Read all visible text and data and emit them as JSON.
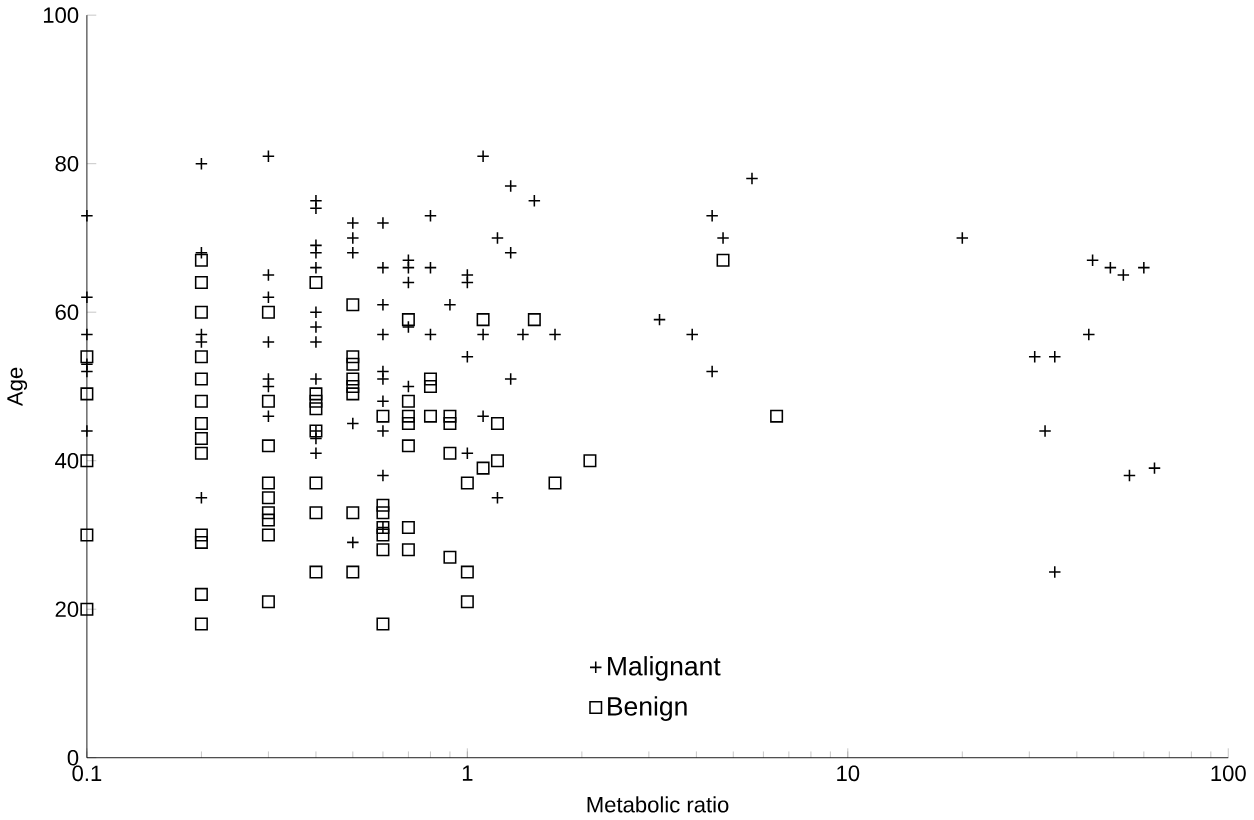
{
  "chart_data": {
    "type": "scatter",
    "xlabel": "Metabolic ratio",
    "ylabel": "Age",
    "log": "x",
    "xlim": [
      0.1,
      100
    ],
    "ylim": [
      0,
      100
    ],
    "xticks": [
      0.1,
      1,
      10,
      100
    ],
    "yticks": [
      0,
      20,
      40,
      60,
      80,
      100
    ],
    "grid": false,
    "legend": "bottom",
    "series": [
      {
        "name": "Malignant",
        "color": "#000000",
        "marker": "cross",
        "x": [
          0.1,
          0.1,
          0.1,
          0.1,
          0.1,
          0.1,
          0.2,
          0.2,
          0.2,
          0.2,
          0.2,
          0.3,
          0.3,
          0.3,
          0.3,
          0.3,
          0.3,
          0.3,
          0.4,
          0.4,
          0.4,
          0.4,
          0.4,
          0.4,
          0.4,
          0.4,
          0.4,
          0.4,
          0.4,
          0.4,
          0.5,
          0.5,
          0.5,
          0.5,
          0.5,
          0.6,
          0.6,
          0.6,
          0.6,
          0.6,
          0.6,
          0.6,
          0.6,
          0.6,
          0.6,
          0.7,
          0.7,
          0.7,
          0.7,
          0.7,
          0.8,
          0.8,
          0.8,
          0.9,
          1.0,
          1.0,
          1.0,
          1.0,
          1.1,
          1.1,
          1.1,
          1.2,
          1.2,
          1.3,
          1.3,
          1.3,
          1.4,
          1.5,
          1.7,
          3.2,
          3.9,
          4.4,
          4.4,
          4.7,
          5.6,
          20,
          31,
          33,
          35,
          35,
          43,
          44,
          49,
          53,
          55,
          60,
          64
        ],
        "values": [
          73,
          62,
          57,
          53,
          52,
          44,
          80,
          68,
          57,
          56,
          35,
          81,
          65,
          62,
          56,
          51,
          50,
          46,
          75,
          74,
          69,
          68,
          66,
          60,
          58,
          56,
          51,
          44,
          43,
          41,
          72,
          70,
          68,
          45,
          29,
          72,
          66,
          61,
          57,
          52,
          51,
          48,
          44,
          38,
          31,
          67,
          66,
          64,
          58,
          50,
          73,
          66,
          57,
          61,
          65,
          64,
          54,
          41,
          81,
          57,
          46,
          70,
          35,
          77,
          68,
          51,
          57,
          75,
          57,
          59,
          57,
          73,
          52,
          70,
          78,
          70,
          54,
          44,
          54,
          25,
          57,
          67,
          66,
          65,
          38,
          66,
          39
        ]
      },
      {
        "name": "Benign",
        "color": "#000000",
        "marker": "square",
        "x": [
          0.1,
          0.1,
          0.1,
          0.1,
          0.1,
          0.2,
          0.2,
          0.2,
          0.2,
          0.2,
          0.2,
          0.2,
          0.2,
          0.2,
          0.2,
          0.2,
          0.2,
          0.2,
          0.3,
          0.3,
          0.3,
          0.3,
          0.3,
          0.3,
          0.3,
          0.3,
          0.3,
          0.4,
          0.4,
          0.4,
          0.4,
          0.4,
          0.4,
          0.4,
          0.4,
          0.5,
          0.5,
          0.5,
          0.5,
          0.5,
          0.5,
          0.5,
          0.5,
          0.6,
          0.6,
          0.6,
          0.6,
          0.6,
          0.6,
          0.6,
          0.7,
          0.7,
          0.7,
          0.7,
          0.7,
          0.7,
          0.7,
          0.8,
          0.8,
          0.8,
          0.9,
          0.9,
          0.9,
          0.9,
          1.0,
          1.0,
          1.0,
          1.1,
          1.1,
          1.2,
          1.2,
          1.5,
          1.7,
          2.1,
          4.7,
          6.5
        ],
        "values": [
          54,
          49,
          40,
          30,
          20,
          67,
          64,
          60,
          54,
          51,
          48,
          45,
          43,
          41,
          30,
          29,
          22,
          18,
          60,
          48,
          42,
          37,
          35,
          33,
          32,
          30,
          21,
          64,
          49,
          48,
          47,
          44,
          37,
          33,
          25,
          61,
          54,
          53,
          51,
          50,
          49,
          33,
          25,
          46,
          34,
          33,
          31,
          30,
          28,
          18,
          59,
          48,
          46,
          45,
          42,
          31,
          28,
          51,
          50,
          46,
          46,
          45,
          41,
          27,
          37,
          25,
          21,
          59,
          39,
          45,
          40,
          59,
          37,
          40,
          67,
          46
        ]
      }
    ]
  }
}
